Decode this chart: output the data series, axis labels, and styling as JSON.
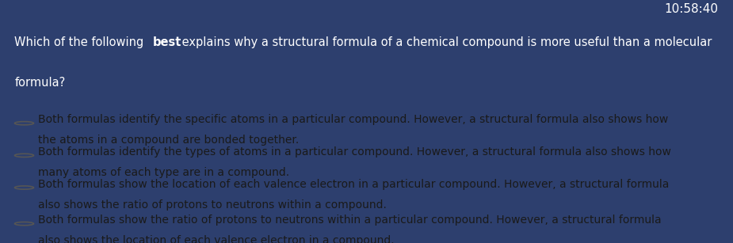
{
  "timer": "10:58:40",
  "question_pre": "Which of the following ",
  "question_bold": "best",
  "question_post": " explains why a structural formula of a chemical compound is more useful than a molecular",
  "question_line2": "formula?",
  "options": [
    "Both formulas identify the specific atoms in a particular compound. However, a structural formula also shows how\nthe atoms in a compound are bonded together.",
    "Both formulas identify the types of atoms in a particular compound. However, a structural formula also shows how\nmany atoms of each type are in a compound.",
    "Both formulas show the location of each valence electron in a particular compound. However, a structural formula\nalso shows the ratio of protons to neutrons within a compound.",
    "Both formulas show the ratio of protons to neutrons within a particular compound. However, a structural formula\nalso shows the location of each valence electron in a compound."
  ],
  "bg_top_color": "#2d3f6e",
  "bg_bottom_color": "#d4d4c4",
  "text_color_question": "#ffffff",
  "text_color_options": "#1a1a1a",
  "timer_color": "#ffffff",
  "left_bar_color": "#2d3f6e",
  "circle_color": "#555555",
  "font_size_timer": 11,
  "font_size_question": 10.5,
  "font_size_options": 10,
  "fig_width": 9.25,
  "fig_height": 3.07,
  "dpi": 100
}
